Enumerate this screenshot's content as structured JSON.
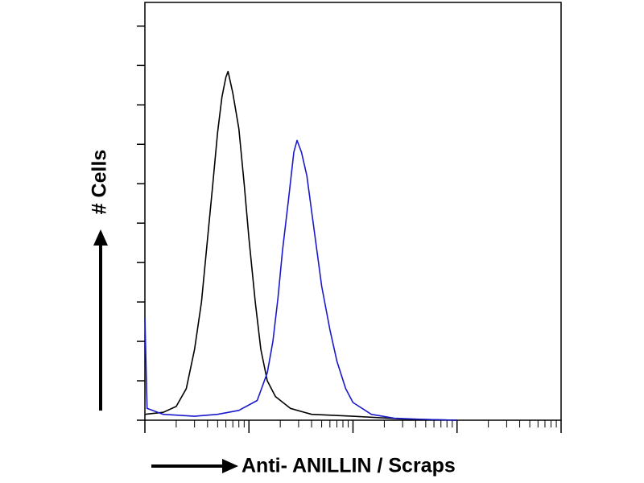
{
  "chart_data": {
    "type": "line",
    "ylabel": "# Cells",
    "xlabel": "Anti- ANILLIN / Scraps",
    "xscale": "log",
    "xlim": [
      1,
      10000
    ],
    "xticks": [
      1,
      10,
      100,
      1000,
      10000
    ],
    "ylim": [
      0,
      10.6
    ],
    "yticks": [
      0,
      1,
      2,
      3,
      4,
      5,
      6,
      7,
      8,
      9,
      10
    ],
    "series": [
      {
        "color": "#000000",
        "x": [
          1,
          1.5,
          2,
          2.5,
          3,
          3.5,
          4,
          4.5,
          5,
          5.5,
          6,
          6.3,
          7,
          8,
          9,
          10,
          11.5,
          13,
          15,
          18,
          25,
          40,
          100,
          300,
          1000
        ],
        "values": [
          0.15,
          0.2,
          0.35,
          0.8,
          1.8,
          3.0,
          4.6,
          6.0,
          7.3,
          8.2,
          8.7,
          8.85,
          8.3,
          7.4,
          6.0,
          4.6,
          3.0,
          1.8,
          1.0,
          0.6,
          0.3,
          0.15,
          0.1,
          0.03,
          0
        ]
      },
      {
        "color": "#1a1acc",
        "x": [
          1,
          1.05,
          1.5,
          3,
          5,
          8,
          12,
          15,
          17,
          19,
          21,
          24,
          27,
          29,
          32,
          36,
          40,
          45,
          50,
          60,
          70,
          85,
          100,
          150,
          250,
          500,
          1000
        ],
        "values": [
          2.6,
          0.3,
          0.15,
          0.1,
          0.15,
          0.25,
          0.5,
          1.2,
          2.0,
          3.1,
          4.3,
          5.6,
          6.8,
          7.1,
          6.8,
          6.2,
          5.3,
          4.3,
          3.4,
          2.3,
          1.5,
          0.8,
          0.45,
          0.15,
          0.05,
          0.02,
          0
        ]
      }
    ]
  }
}
